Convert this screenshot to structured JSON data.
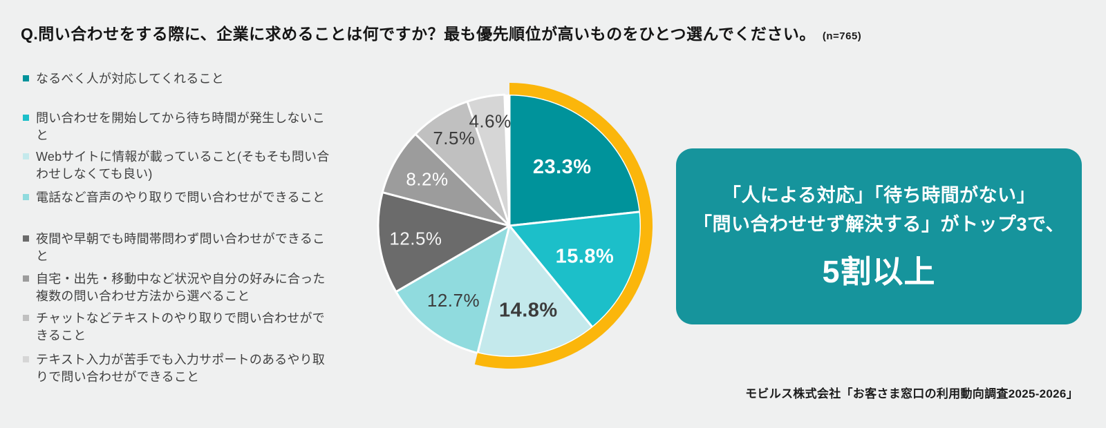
{
  "title": {
    "question": "Q.問い合わせをする際に、企業に求めることは何ですか？最も優先順位が高いものをひとつ選んでください。",
    "sample": "(n=765)"
  },
  "chart_data": {
    "type": "pie",
    "start_angle_deg": 0,
    "direction": "clockwise",
    "unit": "%",
    "slices": [
      {
        "label": "なるべく人が対応してくれること",
        "value": 23.3,
        "color": "#00939B",
        "label_color": "#FFFFFF",
        "label_bold": true
      },
      {
        "label": "問い合わせを開始してから待ち時間が発生しないこと",
        "value": 15.8,
        "color": "#1CBFC9",
        "label_color": "#FFFFFF",
        "label_bold": true
      },
      {
        "label": "Webサイトに情報が載っていること(そもそも問い合わせしなくても良い)",
        "value": 14.8,
        "color": "#C4E9EC",
        "label_color": "#3C3C3C",
        "label_bold": true
      },
      {
        "label": "電話など音声のやり取りで問い合わせができること",
        "value": 12.7,
        "color": "#90DBDE",
        "label_color": "#3C3C3C",
        "label_bold": false
      },
      {
        "label": "夜間や早朝でも時間帯問わず問い合わせができること",
        "value": 12.5,
        "color": "#6B6B6B",
        "label_color": "#F4F4F4",
        "label_bold": false
      },
      {
        "label": "自宅・出先・移動中など状況や自分の好みに合った複数の問い合わせ方法から選べること",
        "value": 8.2,
        "color": "#9C9C9C",
        "label_color": "#FFFFFF",
        "label_bold": false
      },
      {
        "label": "チャットなどテキストのやり取りで問い合わせができること",
        "value": 7.5,
        "color": "#C0C0C0",
        "label_color": "#3C3C3C",
        "label_bold": false
      },
      {
        "label": "テキスト入力が苦手でも入力サポートのあるやり取りで問い合わせができること",
        "value": 4.6,
        "color": "#D6D6D6",
        "label_color": "#3C3C3C",
        "label_bold": false
      }
    ],
    "highlight": {
      "slice_count": 3,
      "color": "#FBB60B",
      "meaning": "top3-total-over-50-percent"
    }
  },
  "callout": {
    "line1": "「人による対応」「待ち時間がない」",
    "line2": "「問い合わせせず解決する」がトップ3で、",
    "emphasis": "5割以上",
    "bg_color": "#16949C"
  },
  "source": "モビルス株式会社「お客さま窓口の利用動向調査2025-2026」"
}
